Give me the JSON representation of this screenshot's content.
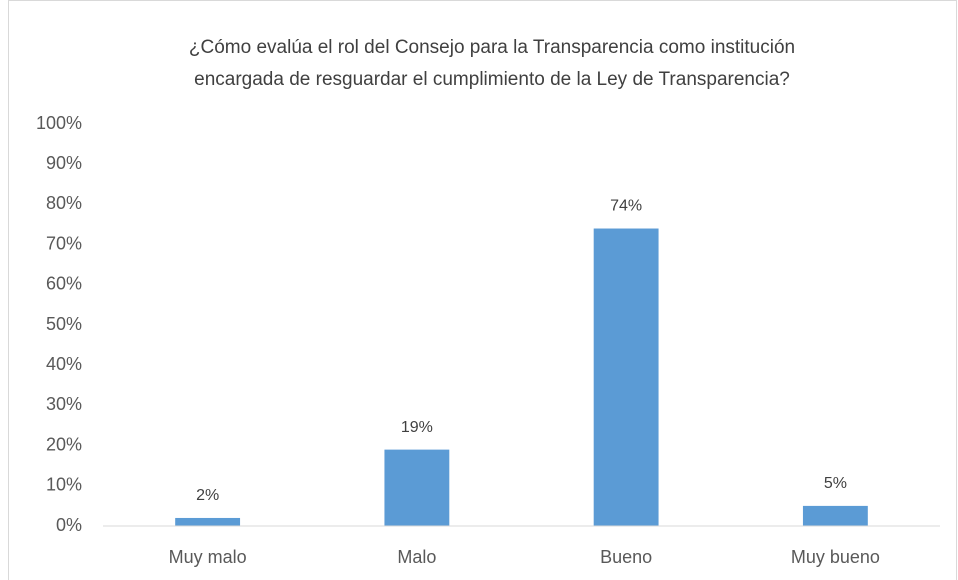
{
  "chart_data": {
    "type": "bar",
    "title": [
      "¿Cómo evalúa el rol del Consejo para la Transparencia como institución",
      "encargada de resguardar el cumplimiento de la Ley de Transparencia?"
    ],
    "categories": [
      "Muy malo",
      "Malo",
      "Bueno",
      "Muy bueno"
    ],
    "values": [
      2,
      19,
      74,
      5
    ],
    "value_labels": [
      "2%",
      "19%",
      "74%",
      "5%"
    ],
    "color": "#5b9bd5",
    "ylim": [
      0,
      100
    ],
    "yticks": [
      {
        "value": 0,
        "label": "0%"
      },
      {
        "value": 10,
        "label": "10%"
      },
      {
        "value": 20,
        "label": "20%"
      },
      {
        "value": 30,
        "label": "30%"
      },
      {
        "value": 40,
        "label": "40%"
      },
      {
        "value": 50,
        "label": "50%"
      },
      {
        "value": 60,
        "label": "60%"
      },
      {
        "value": 70,
        "label": "70%"
      },
      {
        "value": 80,
        "label": "80%"
      },
      {
        "value": 90,
        "label": "90%"
      },
      {
        "value": 100,
        "label": "100%"
      }
    ],
    "grid": false
  }
}
